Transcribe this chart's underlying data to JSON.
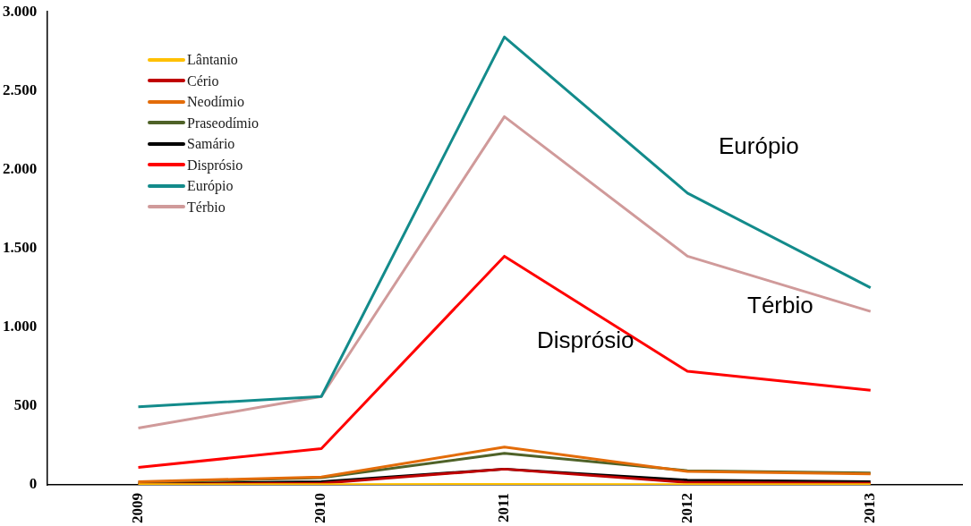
{
  "chart_data": {
    "type": "line",
    "categories": [
      "2009",
      "2010",
      "2011",
      "2012",
      "2013"
    ],
    "series": [
      {
        "name": "Lântanio",
        "color": "#ffc000",
        "values": [
          2,
          2,
          3,
          2,
          2
        ]
      },
      {
        "name": "Cério",
        "color": "#c00000",
        "values": [
          3,
          10,
          100,
          15,
          10
        ]
      },
      {
        "name": "Neodímio",
        "color": "#e36c09",
        "values": [
          20,
          50,
          240,
          85,
          70
        ]
      },
      {
        "name": "Praseodímio",
        "color": "#4f6228",
        "values": [
          15,
          45,
          200,
          90,
          75
        ]
      },
      {
        "name": "Samário",
        "color": "#000000",
        "values": [
          5,
          20,
          100,
          30,
          20
        ]
      },
      {
        "name": "Disprósio",
        "color": "#ff0000",
        "values": [
          110,
          230,
          1450,
          720,
          600
        ]
      },
      {
        "name": "Európio",
        "color": "#138b8b",
        "values": [
          495,
          560,
          2840,
          1850,
          1250
        ]
      },
      {
        "name": "Térbio",
        "color": "#d09a9a",
        "values": [
          360,
          560,
          2335,
          1450,
          1100
        ]
      }
    ],
    "ylim": [
      0,
      3000
    ],
    "yticks": [
      {
        "value": 0,
        "label": "0"
      },
      {
        "value": 500,
        "label": "500"
      },
      {
        "value": 1000,
        "label": "1.000"
      },
      {
        "value": 1500,
        "label": "1.500"
      },
      {
        "value": 2000,
        "label": "2.000"
      },
      {
        "value": 2500,
        "label": "2.500"
      },
      {
        "value": 3000,
        "label": "3.000"
      }
    ],
    "grid": false,
    "legend": "top left",
    "marker": "none",
    "line_style": "solid",
    "annotations": [
      "Európio",
      "Térbio",
      "Disprósio"
    ]
  }
}
